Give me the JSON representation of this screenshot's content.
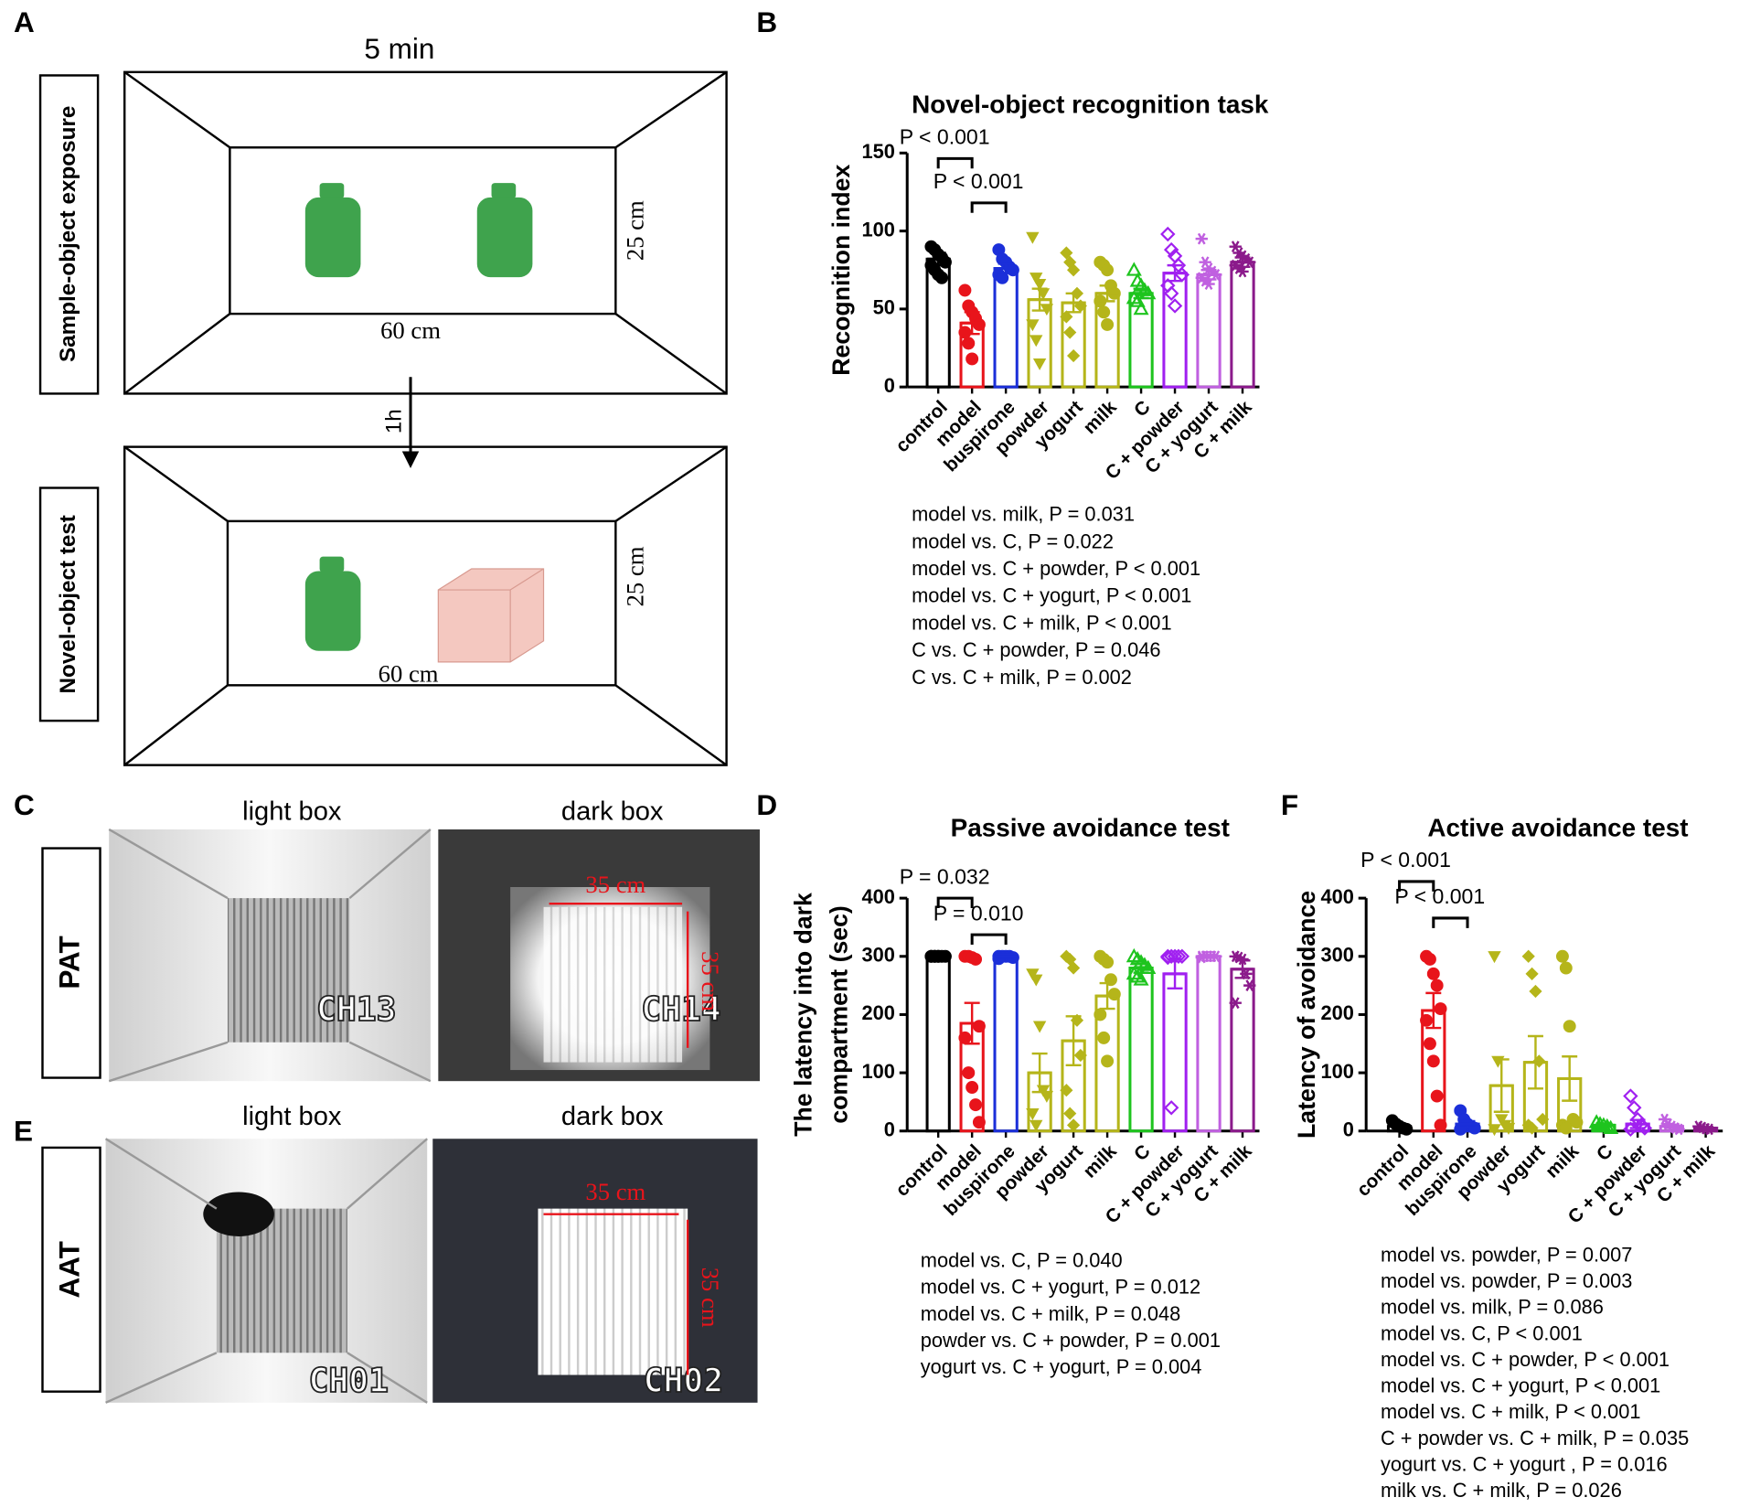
{
  "panel_labels": [
    "A",
    "B",
    "C",
    "D",
    "E",
    "F"
  ],
  "panel_a": {
    "duration": "5 min",
    "sample_label": "Sample-object exposure",
    "test_label": "Novel-object test",
    "interval": "1h",
    "width_top": "60 cm",
    "depth_top": "25 cm",
    "width_bottom": "60 cm",
    "depth_bottom": "25 cm"
  },
  "panel_c": {
    "side_label": "PAT",
    "light_title": "light box",
    "dark_title": "dark box",
    "light_channel": "CH13",
    "dark_channel": "CH14",
    "width": "35 cm",
    "depth": "35 cm"
  },
  "panel_e": {
    "side_label": "AAT",
    "light_title": "light box",
    "dark_title": "dark box",
    "light_channel": "CH01",
    "dark_channel": "CH02",
    "width": "35 cm",
    "depth": "35 cm"
  },
  "chart_data": [
    {
      "type": "bar",
      "title": "Novel-object recognition task",
      "ylabel": [
        "Recognition index"
      ],
      "categories": [
        "control",
        "model",
        "buspirone",
        "powder",
        "yogurt",
        "milk",
        "C",
        "C + powder",
        "C + yogurt",
        "C + milk"
      ],
      "colors": [
        "#000000",
        "#e8141b",
        "#1b2fd9",
        "#b5b51a",
        "#b5b51a",
        "#b5b51a",
        "#1ec41e",
        "#a020f0",
        "#c060e0",
        "#8b1a8b"
      ],
      "markers": [
        "circle",
        "circle",
        "circle",
        "triangle-down",
        "diamond",
        "circle",
        "triangle-open",
        "diamond-open",
        "star",
        "star"
      ],
      "values": [
        82,
        41,
        76,
        56,
        54,
        60,
        60,
        73,
        72,
        80
      ],
      "errors": [
        4,
        7,
        3,
        7,
        6,
        5,
        3,
        5,
        3,
        3
      ],
      "points": [
        [
          90,
          88,
          85,
          83,
          80,
          78,
          75,
          72,
          70
        ],
        [
          62,
          52,
          48,
          44,
          40,
          35,
          28,
          18
        ],
        [
          88,
          82,
          80,
          77,
          75,
          72,
          70
        ],
        [
          96,
          70,
          66,
          60,
          50,
          40,
          30,
          15
        ],
        [
          86,
          80,
          75,
          60,
          52,
          45,
          35,
          20
        ],
        [
          80,
          78,
          75,
          65,
          60,
          55,
          48,
          40
        ],
        [
          75,
          68,
          65,
          62,
          60,
          57,
          55,
          50
        ],
        [
          98,
          88,
          84,
          78,
          72,
          65,
          60,
          52
        ],
        [
          95,
          80,
          76,
          74,
          72,
          70,
          68,
          66
        ],
        [
          90,
          86,
          84,
          82,
          80,
          78,
          76,
          74
        ]
      ],
      "ylim": [
        0,
        150
      ],
      "yticks": [
        0,
        50,
        100,
        150
      ],
      "comparisons": [
        {
          "text": "P < 0.001",
          "between": [
            "control",
            "model"
          ]
        },
        {
          "text": "P < 0.001",
          "between": [
            "model",
            "buspirone"
          ]
        }
      ],
      "notes": [
        "model vs. milk, P = 0.031",
        "model vs. C, P = 0.022",
        "model vs. C + powder, P < 0.001",
        "model vs. C + yogurt, P < 0.001",
        "model vs. C + milk, P < 0.001",
        "C vs. C + powder, P = 0.046",
        "C vs. C + milk, P = 0.002"
      ]
    },
    {
      "type": "bar",
      "title": "Passive avoidance test",
      "ylabel": [
        "The latency into dark",
        "compartment (sec)"
      ],
      "categories": [
        "control",
        "model",
        "buspirone",
        "powder",
        "yogurt",
        "milk",
        "C",
        "C + powder",
        "C + yogurt",
        "C + milk"
      ],
      "colors": [
        "#000000",
        "#e8141b",
        "#1b2fd9",
        "#b5b51a",
        "#b5b51a",
        "#b5b51a",
        "#1ec41e",
        "#a020f0",
        "#c060e0",
        "#8b1a8b"
      ],
      "markers": [
        "circle",
        "circle",
        "circle",
        "triangle-down",
        "diamond",
        "circle",
        "triangle-open",
        "diamond-open",
        "star",
        "star"
      ],
      "values": [
        300,
        185,
        300,
        100,
        155,
        232,
        280,
        270,
        300,
        278
      ],
      "errors": [
        0,
        35,
        3,
        33,
        42,
        22,
        8,
        25,
        0,
        15
      ],
      "points": [
        [
          300,
          300,
          300,
          300,
          300,
          300,
          300,
          300
        ],
        [
          300,
          300,
          298,
          295,
          180,
          160,
          100,
          75,
          45,
          15
        ],
        [
          300,
          300,
          300,
          300,
          298,
          296
        ],
        [
          270,
          260,
          180,
          70,
          60,
          30,
          10
        ],
        [
          300,
          295,
          280,
          190,
          130,
          70,
          30,
          10
        ],
        [
          300,
          295,
          290,
          260,
          235,
          200,
          160,
          120
        ],
        [
          300,
          295,
          290,
          285,
          280,
          270,
          265,
          260
        ],
        [
          300,
          300,
          300,
          300,
          300,
          298,
          40
        ],
        [
          300,
          300,
          300,
          300,
          300,
          298
        ],
        [
          300,
          298,
          295,
          270,
          250,
          220
        ]
      ],
      "ylim": [
        0,
        400
      ],
      "yticks": [
        0,
        100,
        200,
        300,
        400
      ],
      "comparisons": [
        {
          "text": "P = 0.032",
          "between": [
            "control",
            "model"
          ]
        },
        {
          "text": "P = 0.010",
          "between": [
            "model",
            "buspirone"
          ]
        }
      ],
      "notes": [
        "model vs. C, P = 0.040",
        "model vs. C + yogurt, P = 0.012",
        "model vs. C + milk, P = 0.048",
        "powder vs. C + powder, P = 0.001",
        "yogurt vs. C + yogurt, P = 0.004"
      ]
    },
    {
      "type": "bar",
      "title": "Active avoidance test",
      "ylabel": [
        "Latency of avoidance"
      ],
      "categories": [
        "control",
        "model",
        "buspirone",
        "powder",
        "yogurt",
        "milk",
        "C",
        "C + powder",
        "C + yogurt",
        "C + milk"
      ],
      "colors": [
        "#000000",
        "#e8141b",
        "#1b2fd9",
        "#b5b51a",
        "#b5b51a",
        "#b5b51a",
        "#1ec41e",
        "#a020f0",
        "#c060e0",
        "#8b1a8b"
      ],
      "markers": [
        "circle",
        "circle",
        "circle",
        "triangle-down",
        "diamond",
        "circle",
        "triangle-open",
        "diamond-open",
        "star",
        "star"
      ],
      "values": [
        8,
        207,
        12,
        78,
        118,
        90,
        10,
        12,
        8,
        5
      ],
      "errors": [
        3,
        30,
        5,
        45,
        45,
        38,
        3,
        7,
        3,
        2
      ],
      "points": [
        [
          18,
          12,
          8,
          5,
          3
        ],
        [
          300,
          295,
          270,
          250,
          210,
          190,
          150,
          120,
          60,
          10
        ],
        [
          35,
          20,
          12,
          8,
          5,
          3
        ],
        [
          300,
          120,
          20,
          10,
          5,
          3
        ],
        [
          300,
          270,
          240,
          120,
          20,
          10,
          5
        ],
        [
          300,
          280,
          180,
          20,
          15,
          10,
          5
        ],
        [
          15,
          12,
          10,
          8,
          5
        ],
        [
          60,
          40,
          20,
          10,
          5,
          3
        ],
        [
          20,
          12,
          8,
          5,
          3
        ],
        [
          8,
          6,
          4,
          3
        ]
      ],
      "ylim": [
        0,
        400
      ],
      "yticks": [
        0,
        100,
        200,
        300,
        400
      ],
      "comparisons": [
        {
          "text": "P < 0.001",
          "between": [
            "control",
            "model"
          ]
        },
        {
          "text": "P < 0.001",
          "between": [
            "model",
            "buspirone"
          ]
        }
      ],
      "notes": [
        "model vs. powder, P = 0.007",
        "model vs. powder, P = 0.003",
        "model vs. milk, P = 0.086",
        "model vs. C, P < 0.001",
        "model vs. C + powder, P < 0.001",
        "model vs. C + yogurt, P < 0.001",
        "model vs. C + milk, P < 0.001",
        "C + powder vs. C + milk, P = 0.035",
        "yogurt vs. C + yogurt , P = 0.016",
        "milk vs. C + milk, P = 0.026"
      ]
    }
  ]
}
